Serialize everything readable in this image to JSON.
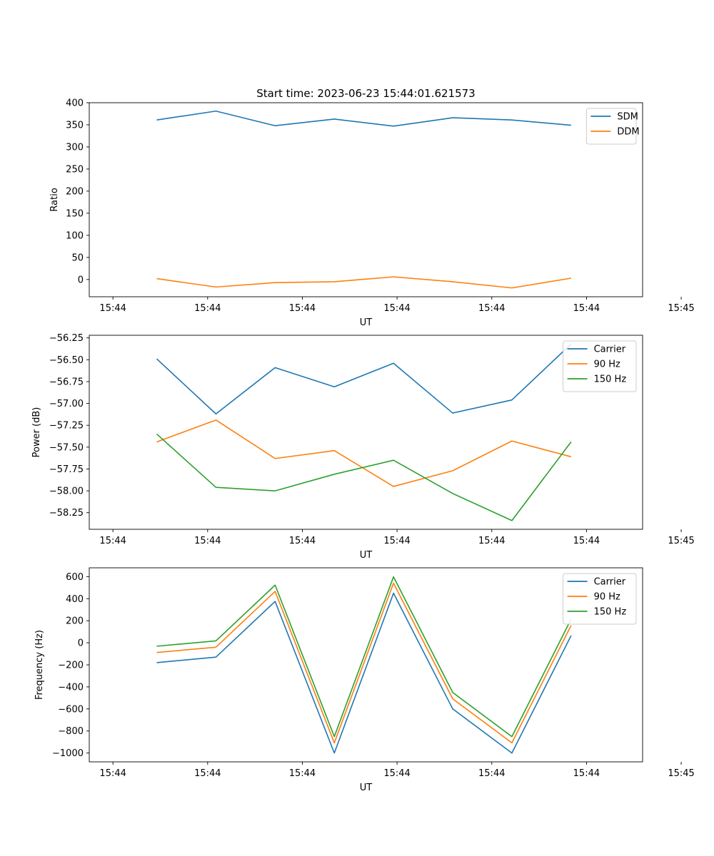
{
  "figure": {
    "title": "Start time: 2023-06-23 15:44:01.621573"
  },
  "chart_data": [
    {
      "type": "line",
      "xlabel": "UT",
      "ylabel": "Ratio",
      "xlim": [
        0,
        0.4674
      ],
      "ylim": [
        -39,
        400
      ],
      "x_ticks": [
        {
          "value": 0.02,
          "label": "15:44"
        },
        {
          "value": 0.1,
          "label": "15:44"
        },
        {
          "value": 0.18,
          "label": "15:44"
        },
        {
          "value": 0.26,
          "label": "15:44"
        },
        {
          "value": 0.34,
          "label": "15:44"
        },
        {
          "value": 0.42,
          "label": "15:44"
        },
        {
          "value": 0.5,
          "label": "15:45"
        }
      ],
      "y_ticks": [
        0,
        50,
        100,
        150,
        200,
        250,
        300,
        350,
        400
      ],
      "legend_position": "top-right",
      "x": [
        0.057,
        0.107,
        0.157,
        0.207,
        0.257,
        0.307,
        0.357,
        0.407
      ],
      "series": [
        {
          "name": "SDM",
          "color": "#1f77b4",
          "values": [
            361,
            381,
            348,
            363,
            347,
            366,
            361,
            349
          ]
        },
        {
          "name": "DDM",
          "color": "#ff7f0e",
          "values": [
            2,
            -17,
            -7,
            -5,
            6,
            -5,
            -19,
            3
          ]
        }
      ]
    },
    {
      "type": "line",
      "xlabel": "UT",
      "ylabel": "Power (dB)",
      "xlim": [
        0,
        0.4674
      ],
      "ylim": [
        -58.44,
        -56.22
      ],
      "x_ticks": [
        {
          "value": 0.02,
          "label": "15:44"
        },
        {
          "value": 0.1,
          "label": "15:44"
        },
        {
          "value": 0.18,
          "label": "15:44"
        },
        {
          "value": 0.26,
          "label": "15:44"
        },
        {
          "value": 0.34,
          "label": "15:44"
        },
        {
          "value": 0.42,
          "label": "15:44"
        },
        {
          "value": 0.5,
          "label": "15:45"
        }
      ],
      "y_ticks": [
        -58.25,
        -58.0,
        -57.75,
        -57.5,
        -57.25,
        -57.0,
        -56.75,
        -56.5,
        -56.25
      ],
      "y_tick_labels": [
        "−58.25",
        "−58.00",
        "−57.75",
        "−57.50",
        "−57.25",
        "−57.00",
        "−56.75",
        "−56.50",
        "−56.25"
      ],
      "legend_position": "top-right",
      "x": [
        0.057,
        0.107,
        0.157,
        0.207,
        0.257,
        0.307,
        0.357,
        0.407
      ],
      "series": [
        {
          "name": "Carrier",
          "color": "#1f77b4",
          "values": [
            -56.49,
            -57.12,
            -56.59,
            -56.81,
            -56.54,
            -57.11,
            -56.96,
            -56.32
          ]
        },
        {
          "name": "90 Hz",
          "color": "#ff7f0e",
          "values": [
            -57.44,
            -57.19,
            -57.63,
            -57.54,
            -57.95,
            -57.77,
            -57.43,
            -57.61
          ]
        },
        {
          "name": "150 Hz",
          "color": "#2ca02c",
          "values": [
            -57.35,
            -57.96,
            -58.0,
            -57.81,
            -57.65,
            -58.03,
            -58.34,
            -57.44
          ]
        }
      ]
    },
    {
      "type": "line",
      "xlabel": "UT",
      "ylabel": "Frequency (Hz)",
      "xlim": [
        0,
        0.4674
      ],
      "ylim": [
        -1080,
        680
      ],
      "x_ticks": [
        {
          "value": 0.02,
          "label": "15:44"
        },
        {
          "value": 0.1,
          "label": "15:44"
        },
        {
          "value": 0.18,
          "label": "15:44"
        },
        {
          "value": 0.26,
          "label": "15:44"
        },
        {
          "value": 0.34,
          "label": "15:44"
        },
        {
          "value": 0.42,
          "label": "15:44"
        },
        {
          "value": 0.5,
          "label": "15:45"
        }
      ],
      "y_ticks": [
        -1000,
        -800,
        -600,
        -400,
        -200,
        0,
        200,
        400,
        600
      ],
      "y_tick_labels": [
        "−1000",
        "−800",
        "−600",
        "−400",
        "−200",
        "0",
        "200",
        "400",
        "600"
      ],
      "legend_position": "top-right",
      "x": [
        0.057,
        0.107,
        0.157,
        0.207,
        0.257,
        0.307,
        0.357,
        0.407
      ],
      "series": [
        {
          "name": "Carrier",
          "color": "#1f77b4",
          "values": [
            -180,
            -130,
            375,
            -1000,
            450,
            -600,
            -1000,
            65
          ]
        },
        {
          "name": "90 Hz",
          "color": "#ff7f0e",
          "values": [
            -88,
            -40,
            466,
            -908,
            541,
            -508,
            -908,
            157
          ]
        },
        {
          "name": "150 Hz",
          "color": "#2ca02c",
          "values": [
            -31,
            17,
            523,
            -851,
            598,
            -451,
            -851,
            214
          ]
        }
      ]
    }
  ]
}
